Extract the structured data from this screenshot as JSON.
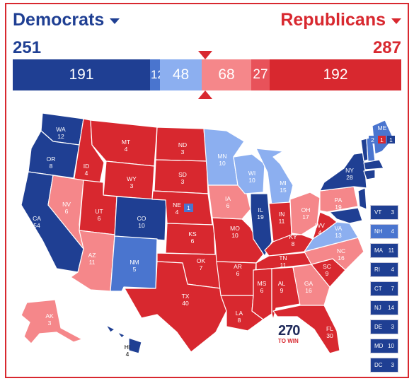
{
  "header": {
    "dem_label": "Democrats",
    "rep_label": "Republicans",
    "dem_total": "251",
    "rep_total": "287"
  },
  "bar": {
    "safe_d": "191",
    "likely_d": "12",
    "lean_d": "48",
    "lean_r": "68",
    "likely_r": "27",
    "safe_r": "192"
  },
  "colors": {
    "safe_d": "#1f3f93",
    "likely_d": "#4a75cf",
    "lean_d": "#8caff0",
    "lean_r": "#f5878a",
    "safe_r": "#d8282f"
  },
  "states": {
    "WA": "WA\n12",
    "OR": "OR\n8",
    "CA": "CA\n54",
    "ID": "ID\n4",
    "NV": "NV\n6",
    "MT": "MT\n4",
    "WY": "WY\n3",
    "UT": "UT\n6",
    "AZ": "AZ\n11",
    "CO": "CO\n10",
    "NM": "NM\n5",
    "ND": "ND\n3",
    "SD": "SD\n3",
    "NE": "NE\n4",
    "KS": "KS\n6",
    "OK": "OK\n7",
    "TX": "TX\n40",
    "MN": "MN\n10",
    "IA": "IA\n6",
    "MO": "MO\n10",
    "AR": "AR\n6",
    "LA": "LA\n8",
    "WI": "WI\n10",
    "IL": "IL\n19",
    "MI": "MI\n15",
    "IN": "IN\n11",
    "OH": "OH\n17",
    "KY": "KY\n8",
    "TN": "TN\n11",
    "MS": "MS\n6",
    "AL": "AL\n9",
    "GA": "GA\n16",
    "FL": "FL\n30",
    "SC": "SC\n9",
    "NC": "NC\n16",
    "VA": "VA\n13",
    "WV": "WV\n4",
    "PA": "PA\n19",
    "NY": "NY\n28",
    "ME": "ME",
    "AK": "AK\n3",
    "HI": "HI\n4"
  },
  "extras": {
    "ne_district": "1",
    "me_d1": "2",
    "me_d2": "1",
    "me_d3": "1"
  },
  "small_states": [
    {
      "abbr": "VT",
      "ev": "3",
      "rating": "safe_d"
    },
    {
      "abbr": "NH",
      "ev": "4",
      "rating": "likely_d"
    },
    {
      "abbr": "MA",
      "ev": "11",
      "rating": "safe_d"
    },
    {
      "abbr": "RI",
      "ev": "4",
      "rating": "safe_d"
    },
    {
      "abbr": "CT",
      "ev": "7",
      "rating": "safe_d"
    },
    {
      "abbr": "NJ",
      "ev": "14",
      "rating": "safe_d"
    },
    {
      "abbr": "DE",
      "ev": "3",
      "rating": "safe_d"
    },
    {
      "abbr": "MD",
      "ev": "10",
      "rating": "safe_d"
    },
    {
      "abbr": "DC",
      "ev": "3",
      "rating": "safe_d"
    }
  ],
  "logo": {
    "big": "270",
    "small": "TO WIN"
  }
}
